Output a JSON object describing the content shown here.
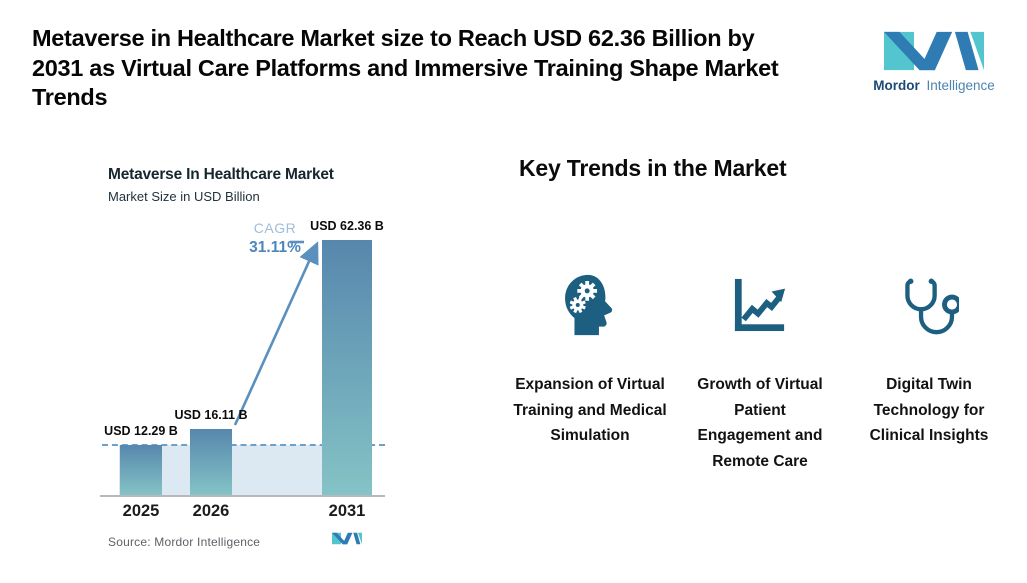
{
  "header": {
    "title_lines": [
      "Metaverse in Healthcare Market size to Reach USD 62.36 Billion by",
      "2031 as Virtual Care Platforms and Immersive Training Shape Market",
      "Trends"
    ],
    "logo": {
      "brand_bold": "Mordor",
      "brand_light": "Intelligence"
    }
  },
  "chart": {
    "title": "Metaverse In Healthcare Market",
    "subtitle": "Market Size in USD Billion",
    "cagr_label": "CAGR",
    "cagr_value": "31.11%",
    "source": "Source: Mordor Intelligence"
  },
  "chart_data": {
    "type": "bar",
    "title": "Metaverse In Healthcare Market",
    "ylabel": "Market Size in USD Billion",
    "categories": [
      "2025",
      "2026",
      "2031"
    ],
    "values": [
      12.29,
      16.11,
      62.36
    ],
    "bar_labels": [
      "USD 12.29 B",
      "USD 16.11 B",
      "USD 62.36 B"
    ],
    "ylim": [
      0,
      62.36
    ],
    "grid": false,
    "annotations": {
      "cagr": "CAGR 31.11%",
      "dashed_reference_at": 12.29
    },
    "bar_gradient": [
      "#5787ad",
      "#84c3c6"
    ]
  },
  "trends": {
    "heading": "Key Trends in the Market",
    "items": [
      {
        "icon": "head-gears-icon",
        "label": "Expansion of Virtual Training and Medical Simulation"
      },
      {
        "icon": "growth-chart-icon",
        "label": "Growth of Virtual Patient Engagement and Remote Care"
      },
      {
        "icon": "stethoscope-icon",
        "label": "Digital Twin Technology for Clinical Insights"
      }
    ]
  },
  "colors": {
    "accent_blue": "#2f7cb4",
    "accent_teal": "#53c5ce",
    "icon_color": "#1d5f80",
    "arrow_blue": "#5a8fbe",
    "cagr_label_color": "#9fbeda",
    "cagr_value_color": "#4c86bb",
    "band": "#dde9f2",
    "dashed_line": "#6fa0c8",
    "source_text": "#5d6267"
  }
}
